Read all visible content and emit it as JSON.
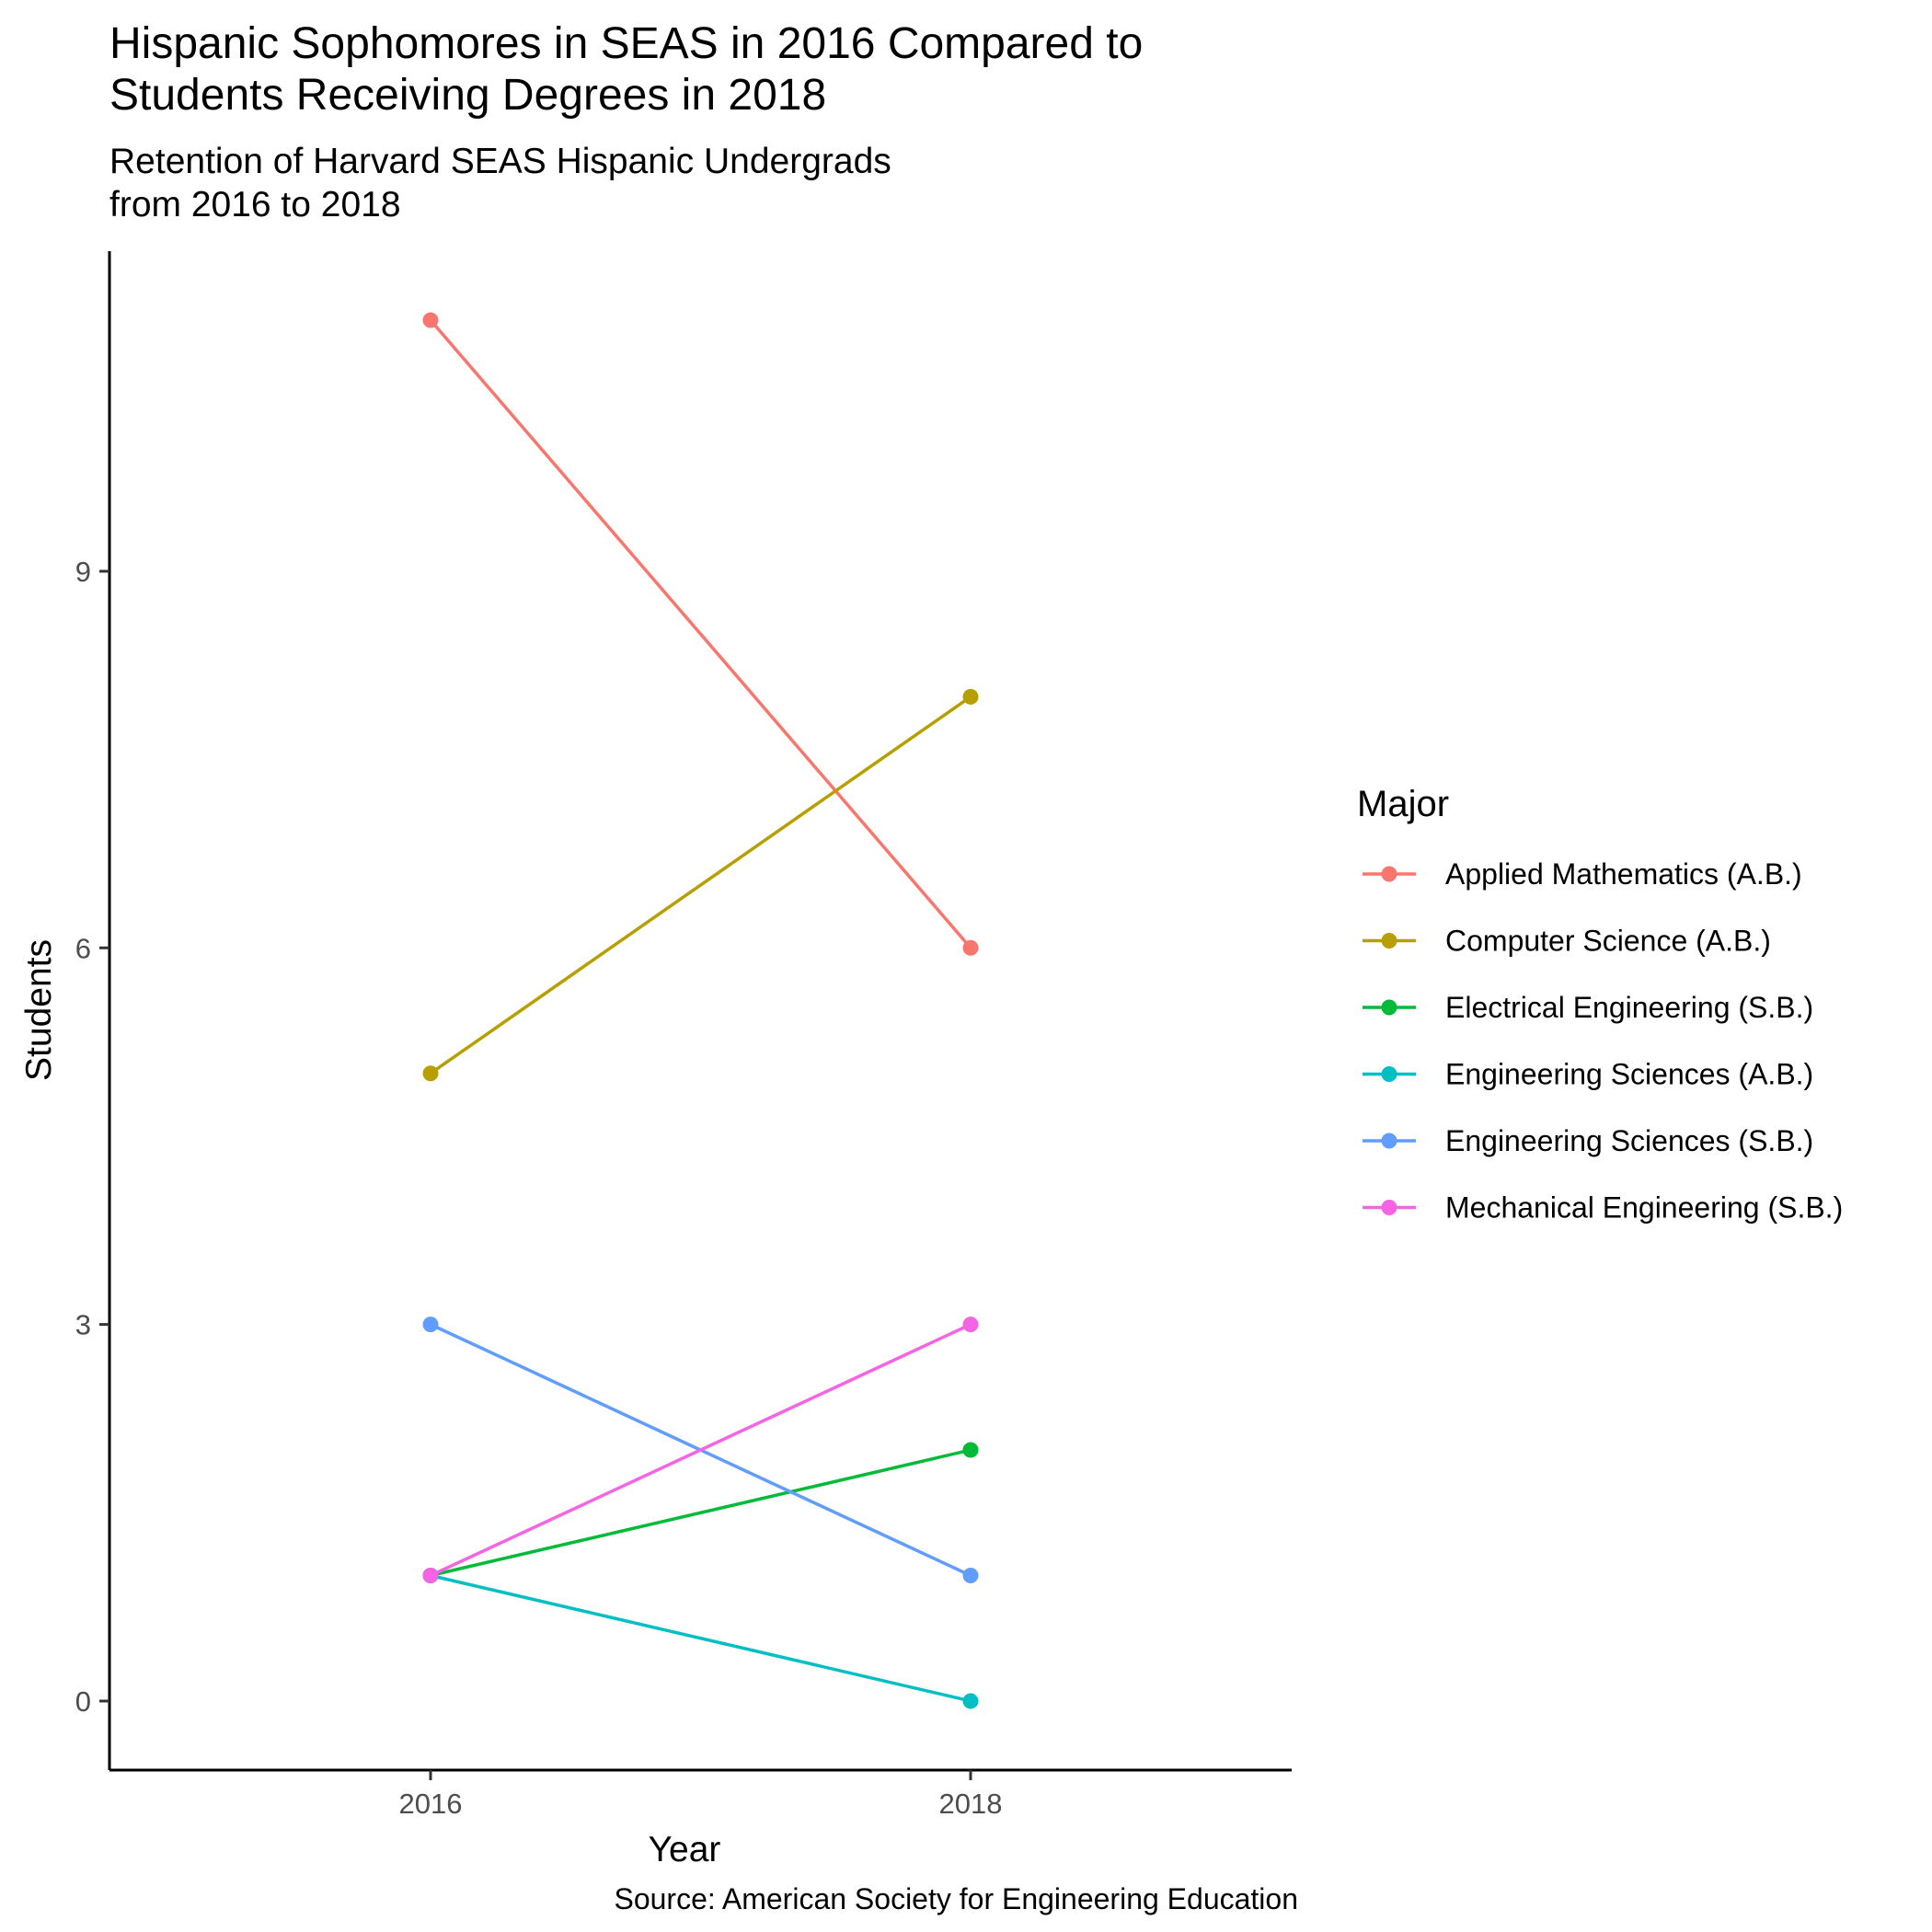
{
  "title_line1": "Hispanic Sophomores in SEAS in 2016 Compared to",
  "title_line2": "Students Receiving Degrees in 2018",
  "subtitle_line1": "Retention of Harvard SEAS Hispanic Undergrads",
  "subtitle_line2": "from 2016 to 2018",
  "caption": "Source: American Society for Engineering Education",
  "chart_data": {
    "type": "line",
    "title": "Hispanic Sophomores in SEAS in 2016 Compared to Students Receiving Degrees in 2018",
    "subtitle": "Retention of Harvard SEAS Hispanic Undergrads from 2016 to 2018",
    "xlabel": "Year",
    "ylabel": "Students",
    "x": [
      "2016",
      "2018"
    ],
    "yticks": [
      0,
      3,
      6,
      9
    ],
    "ylim": [
      -0.55,
      11.55
    ],
    "grid": false,
    "legend_title": "Major",
    "legend_position": "right",
    "series": [
      {
        "name": "Applied Mathematics (A.B.)",
        "color": "#F8766D",
        "values": [
          11,
          6
        ]
      },
      {
        "name": "Computer Science (A.B.)",
        "color": "#B79F00",
        "values": [
          5,
          8
        ]
      },
      {
        "name": "Electrical Engineering (S.B.)",
        "color": "#00BA38",
        "values": [
          1,
          2
        ]
      },
      {
        "name": "Engineering Sciences (A.B.)",
        "color": "#00BFC4",
        "values": [
          1,
          0
        ]
      },
      {
        "name": "Engineering Sciences (S.B.)",
        "color": "#619CFF",
        "values": [
          3,
          1
        ]
      },
      {
        "name": "Mechanical Engineering (S.B.)",
        "color": "#F564E3",
        "values": [
          1,
          3
        ]
      }
    ]
  }
}
